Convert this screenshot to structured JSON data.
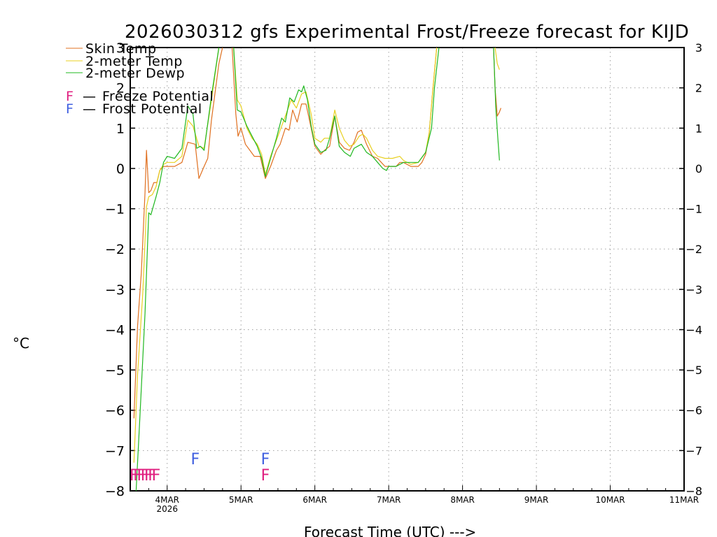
{
  "chart_data": {
    "type": "line",
    "title": "2026030312 gfs Experimental Frost/Freeze forecast for KIJD",
    "ylabel": "°C",
    "xlabel": "Forecast Time (UTC) --->",
    "ylim": [
      -8,
      3
    ],
    "xlim": [
      3.5,
      11.0
    ],
    "grid": true,
    "legend_position": "top-left",
    "y_ticks": [
      "-8",
      "-7",
      "-6",
      "-5",
      "-4",
      "-3",
      "-2",
      "-1",
      "0",
      "1",
      "2",
      "3"
    ],
    "x_ticks": [
      {
        "x": 4,
        "label": "4MAR",
        "sub": "2026"
      },
      {
        "x": 5,
        "label": "5MAR",
        "sub": ""
      },
      {
        "x": 6,
        "label": "6MAR",
        "sub": ""
      },
      {
        "x": 7,
        "label": "7MAR",
        "sub": ""
      },
      {
        "x": 8,
        "label": "8MAR",
        "sub": ""
      },
      {
        "x": 9,
        "label": "9MAR",
        "sub": ""
      },
      {
        "x": 10,
        "label": "10MAR",
        "sub": ""
      },
      {
        "x": 11,
        "label": "11MAR",
        "sub": ""
      }
    ],
    "series": [
      {
        "name": "Skin Temp",
        "color": "#e07020",
        "segments": [
          [
            [
              3.55,
              -6.2
            ],
            [
              3.6,
              -3.9
            ],
            [
              3.65,
              -2.6
            ],
            [
              3.7,
              -0.6
            ],
            [
              3.72,
              0.45
            ],
            [
              3.75,
              -0.6
            ],
            [
              3.78,
              -0.55
            ],
            [
              3.82,
              -0.35
            ],
            [
              3.86,
              -0.35
            ],
            [
              3.9,
              -0.05
            ],
            [
              3.95,
              0.05
            ],
            [
              4.0,
              0.05
            ],
            [
              4.1,
              0.05
            ],
            [
              4.2,
              0.15
            ],
            [
              4.28,
              0.65
            ],
            [
              4.38,
              0.6
            ],
            [
              4.43,
              -0.25
            ],
            [
              4.5,
              0.05
            ],
            [
              4.55,
              0.25
            ],
            [
              4.6,
              1.2
            ],
            [
              4.7,
              2.6
            ],
            [
              4.75,
              3.0
            ]
          ],
          [
            [
              4.88,
              3.0
            ],
            [
              4.93,
              1.35
            ],
            [
              4.96,
              0.8
            ],
            [
              5.0,
              1.0
            ],
            [
              5.06,
              0.6
            ],
            [
              5.12,
              0.45
            ],
            [
              5.18,
              0.3
            ],
            [
              5.26,
              0.3
            ],
            [
              5.33,
              -0.25
            ],
            [
              5.4,
              0.05
            ],
            [
              5.48,
              0.45
            ],
            [
              5.53,
              0.6
            ],
            [
              5.6,
              1.0
            ],
            [
              5.65,
              0.95
            ],
            [
              5.7,
              1.45
            ],
            [
              5.76,
              1.15
            ],
            [
              5.82,
              1.6
            ],
            [
              5.88,
              1.6
            ],
            [
              5.95,
              1.0
            ],
            [
              6.0,
              0.55
            ],
            [
              6.08,
              0.35
            ],
            [
              6.13,
              0.45
            ],
            [
              6.2,
              0.55
            ],
            [
              6.27,
              1.3
            ],
            [
              6.33,
              0.65
            ],
            [
              6.4,
              0.5
            ],
            [
              6.47,
              0.45
            ],
            [
              6.53,
              0.65
            ],
            [
              6.58,
              0.9
            ],
            [
              6.63,
              0.95
            ],
            [
              6.7,
              0.6
            ],
            [
              6.78,
              0.3
            ],
            [
              6.85,
              0.25
            ],
            [
              6.9,
              0.15
            ],
            [
              6.95,
              0.05
            ],
            [
              7.0,
              0.05
            ],
            [
              7.1,
              0.05
            ],
            [
              7.15,
              0.15
            ],
            [
              7.2,
              0.15
            ],
            [
              7.3,
              0.05
            ],
            [
              7.4,
              0.05
            ],
            [
              7.45,
              0.15
            ],
            [
              7.5,
              0.35
            ],
            [
              7.55,
              0.9
            ],
            [
              7.6,
              2.0
            ],
            [
              7.65,
              3.0
            ]
          ],
          [
            [
              8.42,
              3.0
            ],
            [
              8.44,
              2.0
            ],
            [
              8.47,
              1.3
            ],
            [
              8.5,
              1.4
            ],
            [
              8.52,
              1.5
            ]
          ]
        ]
      },
      {
        "name": "2-meter Temp",
        "color": "#e8d020",
        "segments": [
          [
            [
              3.55,
              -7.3
            ],
            [
              3.6,
              -5.1
            ],
            [
              3.67,
              -3.1
            ],
            [
              3.72,
              -0.95
            ],
            [
              3.75,
              -0.7
            ],
            [
              3.8,
              -0.65
            ],
            [
              3.85,
              -0.45
            ],
            [
              3.9,
              -0.05
            ],
            [
              3.95,
              0.1
            ],
            [
              4.0,
              0.15
            ],
            [
              4.1,
              0.15
            ],
            [
              4.2,
              0.3
            ],
            [
              4.28,
              1.2
            ],
            [
              4.35,
              1.05
            ],
            [
              4.43,
              0.55
            ],
            [
              4.5,
              0.5
            ],
            [
              4.6,
              1.7
            ],
            [
              4.7,
              3.0
            ]
          ],
          [
            [
              4.9,
              3.0
            ],
            [
              4.95,
              1.7
            ],
            [
              5.0,
              1.55
            ],
            [
              5.08,
              1.0
            ],
            [
              5.15,
              0.75
            ],
            [
              5.22,
              0.6
            ],
            [
              5.28,
              0.35
            ],
            [
              5.33,
              -0.15
            ],
            [
              5.4,
              0.3
            ],
            [
              5.48,
              0.7
            ],
            [
              5.53,
              0.95
            ],
            [
              5.6,
              1.3
            ],
            [
              5.68,
              1.7
            ],
            [
              5.75,
              1.5
            ],
            [
              5.82,
              1.85
            ],
            [
              5.88,
              1.9
            ],
            [
              5.95,
              1.35
            ],
            [
              6.0,
              0.75
            ],
            [
              6.08,
              0.65
            ],
            [
              6.13,
              0.75
            ],
            [
              6.2,
              0.75
            ],
            [
              6.27,
              1.45
            ],
            [
              6.33,
              1.0
            ],
            [
              6.4,
              0.7
            ],
            [
              6.47,
              0.55
            ],
            [
              6.53,
              0.6
            ],
            [
              6.6,
              0.8
            ],
            [
              6.65,
              0.85
            ],
            [
              6.7,
              0.75
            ],
            [
              6.78,
              0.45
            ],
            [
              6.85,
              0.3
            ],
            [
              6.95,
              0.25
            ],
            [
              7.05,
              0.25
            ],
            [
              7.15,
              0.3
            ],
            [
              7.2,
              0.2
            ],
            [
              7.3,
              0.1
            ],
            [
              7.4,
              0.15
            ],
            [
              7.5,
              0.4
            ],
            [
              7.55,
              0.9
            ],
            [
              7.6,
              2.0
            ],
            [
              7.65,
              3.0
            ]
          ],
          [
            [
              8.44,
              3.0
            ],
            [
              8.47,
              2.6
            ],
            [
              8.5,
              2.45
            ]
          ]
        ]
      },
      {
        "name": "2-meter Dewp",
        "color": "#20b820",
        "segments": [
          [
            [
              3.58,
              -8.0
            ],
            [
              3.63,
              -6.2
            ],
            [
              3.7,
              -3.6
            ],
            [
              3.75,
              -1.1
            ],
            [
              3.78,
              -1.15
            ],
            [
              3.85,
              -0.7
            ],
            [
              3.9,
              -0.35
            ],
            [
              3.95,
              0.15
            ],
            [
              4.0,
              0.3
            ],
            [
              4.1,
              0.25
            ],
            [
              4.2,
              0.5
            ],
            [
              4.28,
              1.55
            ],
            [
              4.35,
              1.35
            ],
            [
              4.4,
              0.5
            ],
            [
              4.45,
              0.55
            ],
            [
              4.5,
              0.45
            ],
            [
              4.6,
              1.8
            ],
            [
              4.7,
              3.0
            ]
          ],
          [
            [
              4.9,
              3.0
            ],
            [
              4.95,
              1.45
            ],
            [
              5.0,
              1.4
            ],
            [
              5.08,
              1.05
            ],
            [
              5.15,
              0.8
            ],
            [
              5.22,
              0.55
            ],
            [
              5.28,
              0.25
            ],
            [
              5.33,
              -0.2
            ],
            [
              5.4,
              0.25
            ],
            [
              5.48,
              0.75
            ],
            [
              5.55,
              1.25
            ],
            [
              5.6,
              1.15
            ],
            [
              5.66,
              1.75
            ],
            [
              5.72,
              1.65
            ],
            [
              5.78,
              1.95
            ],
            [
              5.82,
              1.9
            ],
            [
              5.85,
              2.05
            ],
            [
              5.9,
              1.7
            ],
            [
              5.95,
              1.05
            ],
            [
              6.0,
              0.6
            ],
            [
              6.08,
              0.4
            ],
            [
              6.15,
              0.45
            ],
            [
              6.2,
              0.75
            ],
            [
              6.27,
              1.3
            ],
            [
              6.33,
              0.55
            ],
            [
              6.4,
              0.4
            ],
            [
              6.48,
              0.3
            ],
            [
              6.53,
              0.5
            ],
            [
              6.58,
              0.55
            ],
            [
              6.63,
              0.6
            ],
            [
              6.7,
              0.4
            ],
            [
              6.78,
              0.3
            ],
            [
              6.85,
              0.15
            ],
            [
              6.92,
              0.0
            ],
            [
              6.97,
              -0.05
            ],
            [
              7.0,
              0.05
            ],
            [
              7.1,
              0.05
            ],
            [
              7.2,
              0.15
            ],
            [
              7.3,
              0.15
            ],
            [
              7.4,
              0.15
            ],
            [
              7.5,
              0.4
            ],
            [
              7.58,
              1.0
            ],
            [
              7.62,
              2.0
            ],
            [
              7.68,
              3.0
            ]
          ],
          [
            [
              8.42,
              3.0
            ],
            [
              8.45,
              1.5
            ],
            [
              8.48,
              0.7
            ],
            [
              8.5,
              0.2
            ]
          ]
        ]
      }
    ],
    "freeze_marker": {
      "label": "F",
      "text": "Freeze Potential",
      "color": "#e02080",
      "times": [
        3.55,
        3.6,
        3.65,
        3.7,
        3.75,
        3.8,
        3.85,
        5.33
      ]
    },
    "frost_marker": {
      "label": "F",
      "text": "Frost Potential",
      "color": "#4060e0",
      "times": [
        4.38,
        5.33
      ]
    },
    "marker_levels": {
      "freeze": -7.6,
      "frost": -7.2
    }
  }
}
